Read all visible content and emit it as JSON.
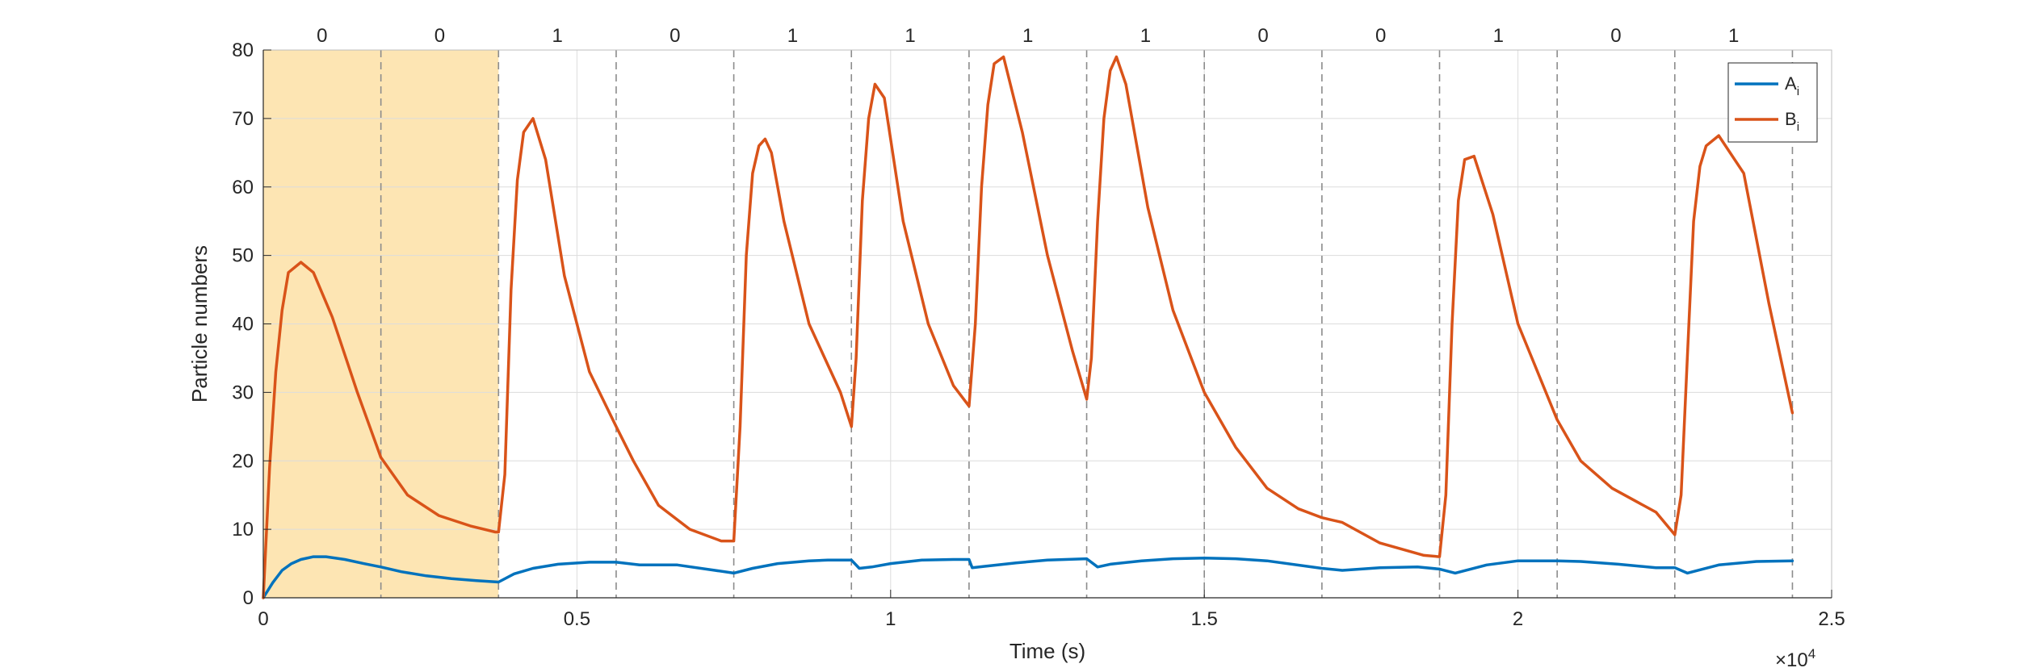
{
  "chart_data": {
    "type": "line",
    "xlabel": "Time (s)",
    "ylabel": "Particle numbers",
    "xlim": [
      0,
      25000
    ],
    "ylim": [
      0,
      80
    ],
    "x_ticks": [
      0,
      5000,
      10000,
      15000,
      20000,
      25000
    ],
    "x_tick_labels": [
      "0",
      "0.5",
      "1",
      "1.5",
      "2",
      "2.5"
    ],
    "x_exponent_label": "×10",
    "x_exponent_power": "4",
    "y_ticks": [
      0,
      10,
      20,
      30,
      40,
      50,
      60,
      70,
      80
    ],
    "y_tick_labels": [
      "0",
      "10",
      "20",
      "30",
      "40",
      "50",
      "60",
      "70",
      "80"
    ],
    "grid": true,
    "legend_position": "top-right",
    "highlight_region": {
      "x": [
        0,
        3750
      ],
      "color": "#fde5b3"
    },
    "segment_boundaries": [
      1875,
      3750,
      5625,
      7500,
      9375,
      11250,
      13125,
      15000,
      16875,
      18750,
      20625,
      22500,
      24375
    ],
    "segment_labels": [
      "0",
      "0",
      "1",
      "0",
      "1",
      "1",
      "1",
      "1",
      "0",
      "0",
      "1",
      "0",
      "1"
    ],
    "series": [
      {
        "name": "A",
        "name_subscript": "i",
        "color": "#0072bd",
        "x": [
          0,
          150,
          300,
          450,
          600,
          800,
          1000,
          1300,
          1600,
          1875,
          2200,
          2600,
          3000,
          3400,
          3750,
          4000,
          4300,
          4700,
          5200,
          5625,
          6000,
          6600,
          7200,
          7500,
          7800,
          8200,
          8700,
          9000,
          9375,
          9500,
          9700,
          10000,
          10500,
          11000,
          11250,
          11300,
          11500,
          12000,
          12500,
          13125,
          13300,
          13500,
          14000,
          14500,
          15000,
          15500,
          16000,
          16875,
          17200,
          17800,
          18400,
          18750,
          19000,
          19500,
          20000,
          20625,
          21000,
          21600,
          22200,
          22500,
          22700,
          23200,
          23800,
          24375
        ],
        "y": [
          0,
          2.2,
          4.0,
          5.0,
          5.6,
          6.0,
          6.0,
          5.6,
          5.0,
          4.5,
          3.8,
          3.2,
          2.8,
          2.5,
          2.3,
          3.5,
          4.3,
          4.9,
          5.2,
          5.2,
          4.8,
          4.8,
          4.0,
          3.6,
          4.3,
          5.0,
          5.4,
          5.5,
          5.5,
          4.3,
          4.5,
          5.0,
          5.5,
          5.6,
          5.6,
          4.4,
          4.6,
          5.1,
          5.5,
          5.7,
          4.5,
          4.9,
          5.4,
          5.7,
          5.8,
          5.7,
          5.4,
          4.3,
          4.0,
          4.4,
          4.5,
          4.2,
          3.6,
          4.8,
          5.4,
          5.4,
          5.3,
          4.9,
          4.4,
          4.4,
          3.6,
          4.8,
          5.3,
          5.4
        ]
      },
      {
        "name": "B",
        "name_subscript": "i",
        "color": "#d95319",
        "x": [
          0,
          100,
          200,
          300,
          400,
          600,
          800,
          1100,
          1500,
          1875,
          2300,
          2800,
          3300,
          3700,
          3750,
          3850,
          3950,
          4050,
          4150,
          4300,
          4500,
          4800,
          5200,
          5625,
          5900,
          6300,
          6800,
          7300,
          7500,
          7600,
          7700,
          7800,
          7900,
          8000,
          8100,
          8300,
          8700,
          9200,
          9375,
          9450,
          9550,
          9650,
          9750,
          9900,
          10200,
          10600,
          11000,
          11250,
          11350,
          11450,
          11550,
          11650,
          11800,
          12100,
          12500,
          12900,
          13125,
          13200,
          13300,
          13400,
          13500,
          13600,
          13750,
          14100,
          14500,
          15000,
          15500,
          16000,
          16500,
          16875,
          17200,
          17800,
          18500,
          18750,
          18850,
          18950,
          19050,
          19150,
          19300,
          19600,
          20000,
          20625,
          21000,
          21500,
          21900,
          22200,
          22500,
          22600,
          22700,
          22800,
          22900,
          23000,
          23200,
          23600,
          24000,
          24375
        ],
        "y": [
          0,
          19,
          33,
          42,
          47.5,
          49,
          47.5,
          41,
          30,
          20.5,
          15,
          12,
          10.5,
          9.6,
          9.6,
          18,
          45,
          61,
          68,
          70,
          64,
          47,
          33,
          25,
          20,
          13.5,
          10,
          8.3,
          8.3,
          25,
          50,
          62,
          66,
          67,
          65,
          55,
          40,
          30,
          25,
          35,
          58,
          70,
          75,
          73,
          55,
          40,
          31,
          28,
          40,
          60,
          72,
          78,
          79,
          68,
          50,
          36,
          29,
          35,
          55,
          70,
          77,
          79,
          75,
          57,
          42,
          30,
          22,
          16,
          13,
          11.7,
          11,
          8,
          6.2,
          6.0,
          15,
          40,
          58,
          64,
          64.5,
          56,
          40,
          26,
          20,
          16,
          14,
          12.5,
          9.2,
          15,
          35,
          55,
          63,
          66,
          67.5,
          62,
          43,
          27
        ]
      }
    ]
  }
}
